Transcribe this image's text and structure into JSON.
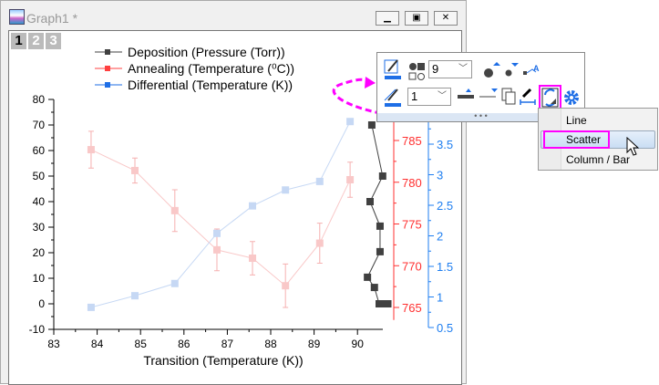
{
  "window": {
    "title": "Graph1 *",
    "layers": [
      "1",
      "2",
      "3"
    ],
    "buttons": [
      "minimize",
      "restore",
      "close"
    ]
  },
  "legend": [
    {
      "label": "Deposition (Pressure (Torr))",
      "color": "#404040"
    },
    {
      "label": "Annealing (Temperature (⁰C))",
      "color": "#ff4040"
    },
    {
      "label": "Differential (Temperature (K))",
      "color": "#1e6ee6"
    }
  ],
  "chart_data": {
    "type": "line",
    "xlabel": "Transition (Temperature (K))",
    "xlim": [
      83,
      90.8
    ],
    "xticks": [
      "83",
      "84",
      "85",
      "86",
      "87",
      "88",
      "89",
      "90"
    ],
    "axes": [
      {
        "name": "left",
        "color": "#000000",
        "ylim": [
          -10,
          80
        ],
        "ticks": [
          "-10",
          "0",
          "10",
          "20",
          "30",
          "40",
          "50",
          "60",
          "70",
          "80"
        ]
      },
      {
        "name": "right-red",
        "color": "#ff3030",
        "ylim": [
          764,
          789
        ],
        "ticks": [
          "765",
          "770",
          "775",
          "780",
          "785"
        ]
      },
      {
        "name": "right-blue",
        "color": "#1e7ef0",
        "ylim": [
          0.5,
          3.9
        ],
        "ticks": [
          "0.5",
          "1",
          "1.5",
          "2",
          "2.5",
          "3",
          "3.5"
        ]
      }
    ],
    "series": [
      {
        "name": "Deposition (Pressure (Torr))",
        "axis": "left",
        "color": "#404040",
        "x": [
          90.33,
          90.58,
          90.29,
          90.52,
          90.52,
          90.23,
          90.39,
          90.5,
          90.6,
          90.7
        ],
        "y": [
          70,
          50,
          40,
          30.4,
          20.4,
          10.4,
          6.4,
          0,
          0,
          0
        ]
      },
      {
        "name": "Annealing (Temperature (⁰C))",
        "axis": "right-red",
        "color": "#f9c8c8",
        "x": [
          83.86,
          84.87,
          85.79,
          86.76,
          87.58,
          88.34,
          89.13,
          89.83
        ],
        "y": [
          783.9,
          781.4,
          776.6,
          771.9,
          770.9,
          767.6,
          772.7,
          780.3
        ],
        "error": [
          2.2,
          1.5,
          2.5,
          2.5,
          2,
          2.6,
          2.4,
          2.1
        ]
      },
      {
        "name": "Differential (Temperature (K))",
        "axis": "right-blue",
        "color": "#c6d8f4",
        "x": [
          83.86,
          84.87,
          85.79,
          86.76,
          87.58,
          88.34,
          89.13,
          89.83
        ],
        "y": [
          0.83,
          1.02,
          1.22,
          2.04,
          2.49,
          2.75,
          2.89,
          3.87
        ]
      }
    ]
  },
  "toolbar": {
    "symbol_size": "9",
    "line_width": "1",
    "icons": [
      "symbol-color-icon",
      "symbol-shape-icon",
      "increase-size-icon",
      "decrease-size-icon",
      "label-icon",
      "line-color-icon",
      "increase-width-icon",
      "decrease-width-icon",
      "copy-format-icon",
      "line-style-icon",
      "change-plot-type-icon",
      "settings-icon"
    ],
    "highlight": "#ff00ff"
  },
  "menu": {
    "items": [
      "Line",
      "Scatter",
      "Column / Bar"
    ],
    "selected": "Scatter"
  }
}
